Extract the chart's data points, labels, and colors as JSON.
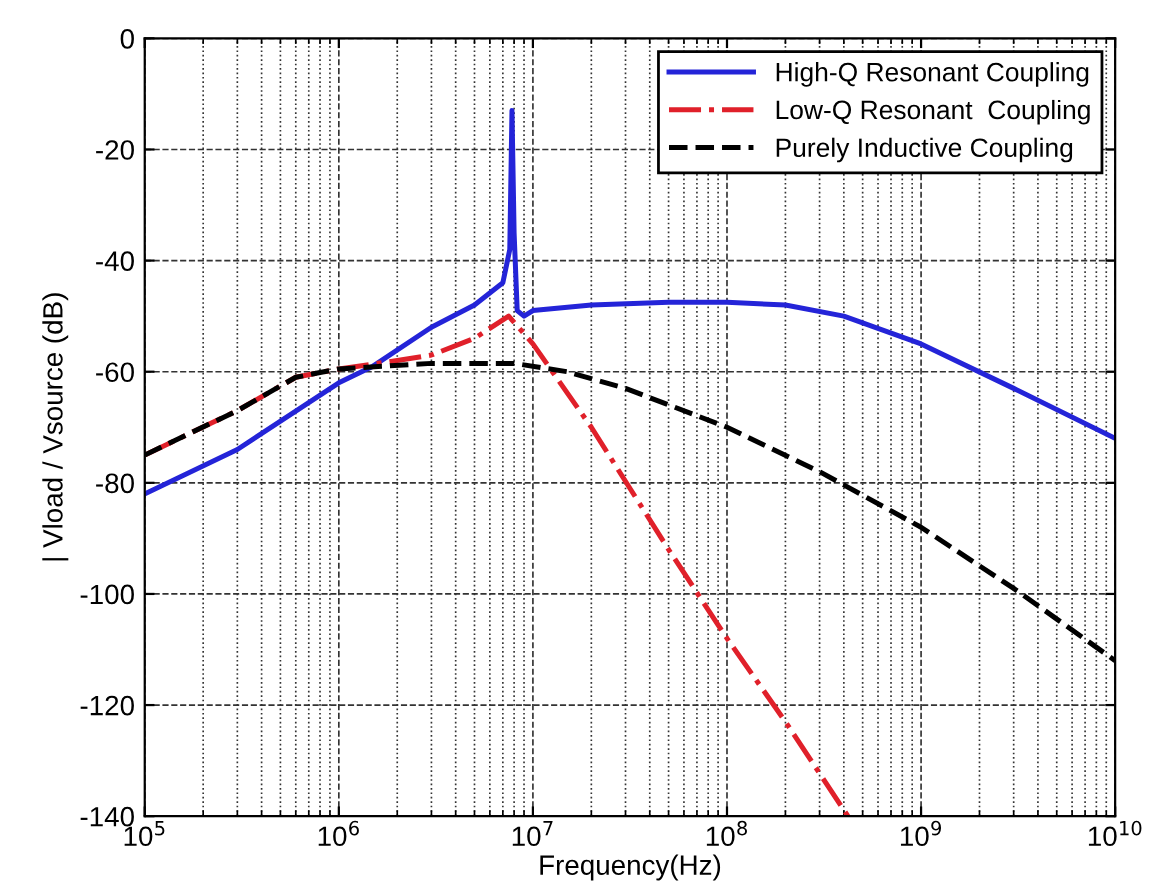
{
  "chart_data": {
    "type": "line",
    "xlabel": "Frequency(Hz)",
    "ylabel": "| Vload / Vsource (dB)",
    "log": "x",
    "grid": true,
    "legend": "top right",
    "xlim": [
      100000,
      10000000000
    ],
    "ylim": [
      -140,
      0
    ],
    "xticks": [
      {
        "value": 100000,
        "label": "10$^{5}$"
      },
      {
        "value": 1000000,
        "label": "10$^{6}$"
      },
      {
        "value": 10000000,
        "label": "10$^{7}$"
      },
      {
        "value": 100000000,
        "label": "10$^{8}$"
      },
      {
        "value": 1000000000,
        "label": "10$^{9}$"
      },
      {
        "value": 10000000000,
        "label": "10$^{10}$"
      }
    ],
    "yticks": [
      -140,
      -120,
      -100,
      -80,
      -60,
      -40,
      -20,
      0
    ],
    "series": [
      {
        "name": "High-Q Resonant Coupling",
        "color": "#2424d8",
        "line_style": "solid",
        "x": [
          100000,
          300000,
          1000000,
          1500000,
          3000000,
          5000000,
          7000000,
          7600000,
          7800000,
          8000000,
          8300000,
          9000000,
          10000000,
          20000000,
          50000000,
          100000000,
          200000000,
          400000000,
          1000000000,
          3000000000,
          10000000000
        ],
        "values": [
          -82,
          -74,
          -62,
          -59,
          -52,
          -48,
          -44,
          -38,
          -13,
          -35,
          -49,
          -50,
          -49,
          -48,
          -47.5,
          -47.5,
          -48,
          -50,
          -55,
          -63,
          -72
        ]
      },
      {
        "name": "Low-Q Resonant  Coupling",
        "color": "#e0202a",
        "line_style": "dashdot",
        "x": [
          100000,
          300000,
          600000,
          1000000,
          2000000,
          3000000,
          5000000,
          7500000,
          10000000,
          20000000,
          50000000,
          100000000,
          200000000,
          420000000
        ],
        "values": [
          -75,
          -67,
          -61,
          -59.5,
          -58,
          -57,
          -54,
          -50,
          -55,
          -70,
          -92,
          -108,
          -123,
          -140
        ]
      },
      {
        "name": "Purely Inductive Coupling",
        "color": "#000000",
        "line_style": "dashed",
        "x": [
          100000,
          300000,
          600000,
          1000000,
          3000000,
          8000000,
          15000000,
          30000000,
          100000000,
          300000000,
          1000000000,
          3000000000,
          10000000000
        ],
        "values": [
          -75,
          -67,
          -61,
          -59.5,
          -58.5,
          -58.5,
          -60,
          -63,
          -70,
          -78,
          -88,
          -99,
          -112
        ]
      }
    ]
  }
}
